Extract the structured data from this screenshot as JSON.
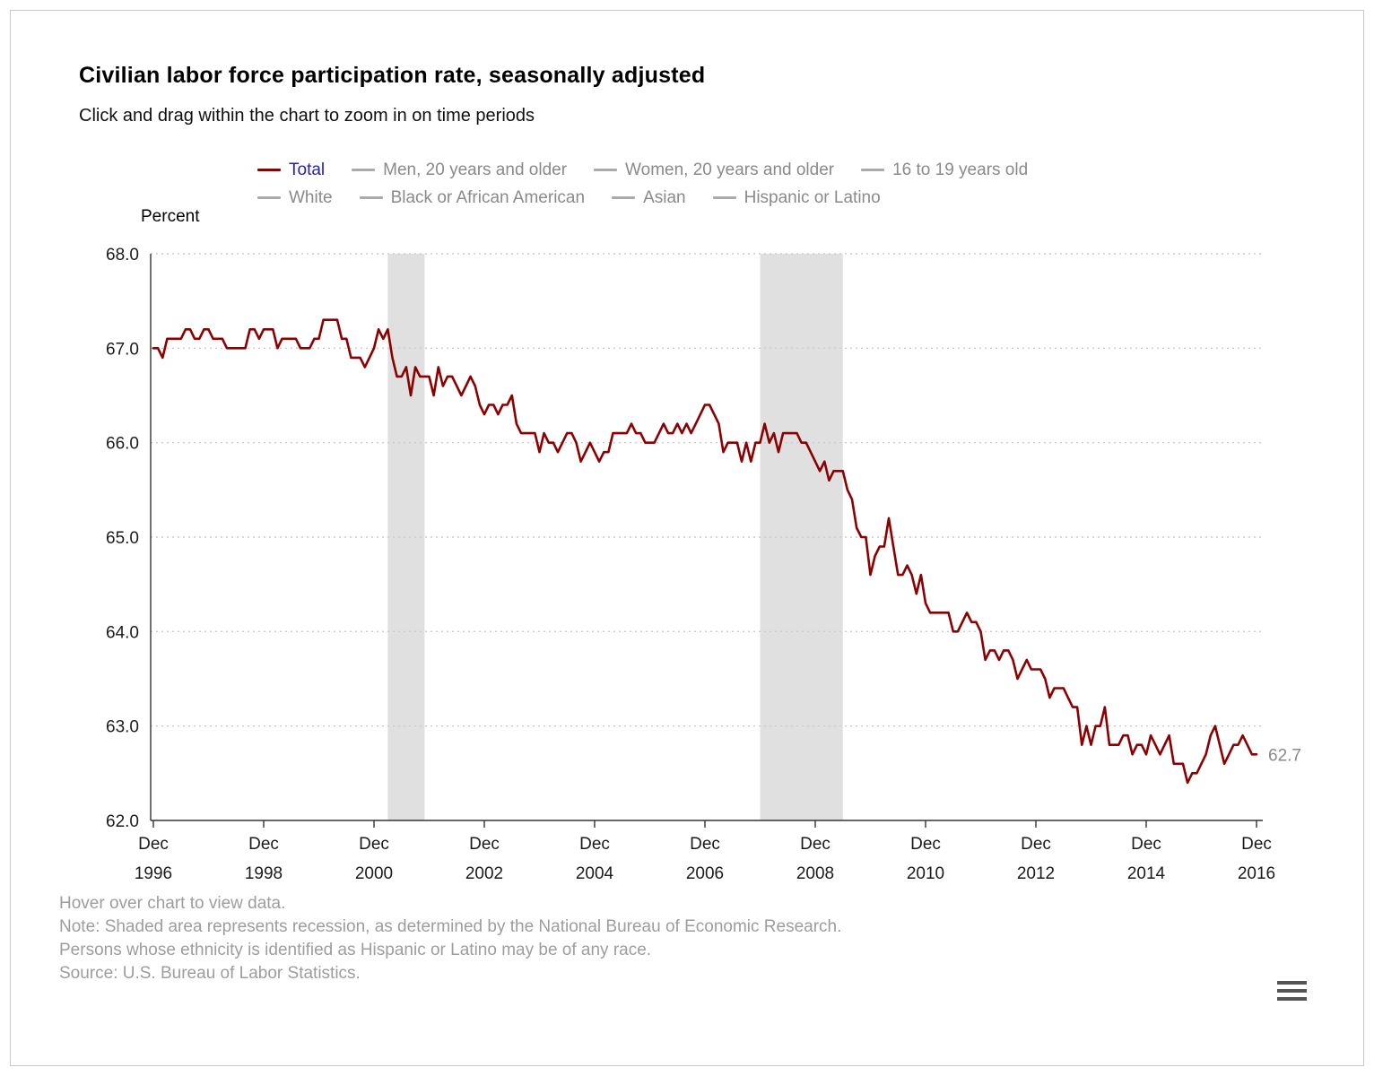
{
  "page": {
    "title": "Civilian labor force participation rate, seasonally adjusted",
    "subtitle": "Click and drag within the chart to zoom in on time periods"
  },
  "legend": {
    "rows": [
      [
        {
          "label": "Total",
          "dash_color": "#8b0000",
          "label_color": "#2424aa",
          "active": true
        },
        {
          "label": "Men, 20 years and older",
          "dash_color": "#aaaaaa",
          "label_color": "#8a8a8a",
          "active": false
        },
        {
          "label": "Women, 20 years and older",
          "dash_color": "#aaaaaa",
          "label_color": "#8a8a8a",
          "active": false
        },
        {
          "label": "16 to 19 years old",
          "dash_color": "#aaaaaa",
          "label_color": "#8a8a8a",
          "active": false
        }
      ],
      [
        {
          "label": "White",
          "dash_color": "#aaaaaa",
          "label_color": "#8a8a8a",
          "active": false
        },
        {
          "label": "Black or African American",
          "dash_color": "#aaaaaa",
          "label_color": "#8a8a8a",
          "active": false
        },
        {
          "label": "Asian",
          "dash_color": "#aaaaaa",
          "label_color": "#8a8a8a",
          "active": false
        },
        {
          "label": "Hispanic or Latino",
          "dash_color": "#aaaaaa",
          "label_color": "#8a8a8a",
          "active": false
        }
      ]
    ]
  },
  "footer": {
    "lines": [
      "Hover over chart to view data.",
      "Note: Shaded area represents recession, as determined by the National Bureau of Economic Research.",
      "Persons whose ethnicity is identified as Hispanic or Latino may be of any race.",
      "Source: U.S. Bureau of Labor Statistics."
    ]
  },
  "chart_data": {
    "type": "line",
    "title": "Civilian labor force participation rate, seasonally adjusted",
    "ylabel": "Percent",
    "ylim": [
      62.0,
      68.0
    ],
    "yticks": [
      "62.0",
      "63.0",
      "64.0",
      "65.0",
      "66.0",
      "67.0",
      "68.0"
    ],
    "grid": "dotted-horizontal",
    "legend_position": "top",
    "x_unit": "month",
    "x_start": "Dec 1996",
    "x_end": "Dec 2016",
    "xticks": [
      {
        "index": 0,
        "line1": "Dec",
        "line2": "1996"
      },
      {
        "index": 24,
        "line1": "Dec",
        "line2": "1998"
      },
      {
        "index": 48,
        "line1": "Dec",
        "line2": "2000"
      },
      {
        "index": 72,
        "line1": "Dec",
        "line2": "2002"
      },
      {
        "index": 96,
        "line1": "Dec",
        "line2": "2004"
      },
      {
        "index": 120,
        "line1": "Dec",
        "line2": "2006"
      },
      {
        "index": 144,
        "line1": "Dec",
        "line2": "2008"
      },
      {
        "index": 168,
        "line1": "Dec",
        "line2": "2010"
      },
      {
        "index": 192,
        "line1": "Dec",
        "line2": "2012"
      },
      {
        "index": 216,
        "line1": "Dec",
        "line2": "2014"
      },
      {
        "index": 240,
        "line1": "Dec",
        "line2": "2016"
      }
    ],
    "recession_color": "#e0e0e0",
    "recessions": [
      {
        "label": "2001 recession",
        "start_index": 51,
        "end_index": 59
      },
      {
        "label": "2007-2009 recession",
        "start_index": 132,
        "end_index": 150
      }
    ],
    "inactive_series": [
      "Men, 20 years and older",
      "Women, 20 years and older",
      "16 to 19 years old",
      "White",
      "Black or African American",
      "Asian",
      "Hispanic or Latino"
    ],
    "series": [
      {
        "name": "Total",
        "color": "#8b0000",
        "values": [
          67.0,
          67.0,
          66.9,
          67.1,
          67.1,
          67.1,
          67.1,
          67.2,
          67.2,
          67.1,
          67.1,
          67.2,
          67.2,
          67.1,
          67.1,
          67.1,
          67.0,
          67.0,
          67.0,
          67.0,
          67.0,
          67.2,
          67.2,
          67.1,
          67.2,
          67.2,
          67.2,
          67.0,
          67.1,
          67.1,
          67.1,
          67.1,
          67.0,
          67.0,
          67.0,
          67.1,
          67.1,
          67.3,
          67.3,
          67.3,
          67.3,
          67.1,
          67.1,
          66.9,
          66.9,
          66.9,
          66.8,
          66.9,
          67.0,
          67.2,
          67.1,
          67.2,
          66.9,
          66.7,
          66.7,
          66.8,
          66.5,
          66.8,
          66.7,
          66.7,
          66.7,
          66.5,
          66.8,
          66.6,
          66.7,
          66.7,
          66.6,
          66.5,
          66.6,
          66.7,
          66.6,
          66.4,
          66.3,
          66.4,
          66.4,
          66.3,
          66.4,
          66.4,
          66.5,
          66.2,
          66.1,
          66.1,
          66.1,
          66.1,
          65.9,
          66.1,
          66.0,
          66.0,
          65.9,
          66.0,
          66.1,
          66.1,
          66.0,
          65.8,
          65.9,
          66.0,
          65.9,
          65.8,
          65.9,
          65.9,
          66.1,
          66.1,
          66.1,
          66.1,
          66.2,
          66.1,
          66.1,
          66.0,
          66.0,
          66.0,
          66.1,
          66.2,
          66.1,
          66.1,
          66.2,
          66.1,
          66.2,
          66.1,
          66.2,
          66.3,
          66.4,
          66.4,
          66.3,
          66.2,
          65.9,
          66.0,
          66.0,
          66.0,
          65.8,
          66.0,
          65.8,
          66.0,
          66.0,
          66.2,
          66.0,
          66.1,
          65.9,
          66.1,
          66.1,
          66.1,
          66.1,
          66.0,
          66.0,
          65.9,
          65.8,
          65.7,
          65.8,
          65.6,
          65.7,
          65.7,
          65.7,
          65.5,
          65.4,
          65.1,
          65.0,
          65.0,
          64.6,
          64.8,
          64.9,
          64.9,
          65.2,
          64.9,
          64.6,
          64.6,
          64.7,
          64.6,
          64.4,
          64.6,
          64.3,
          64.2,
          64.2,
          64.2,
          64.2,
          64.2,
          64.0,
          64.0,
          64.1,
          64.2,
          64.1,
          64.1,
          64.0,
          63.7,
          63.8,
          63.8,
          63.7,
          63.8,
          63.8,
          63.7,
          63.5,
          63.6,
          63.7,
          63.6,
          63.6,
          63.6,
          63.5,
          63.3,
          63.4,
          63.4,
          63.4,
          63.3,
          63.2,
          63.2,
          62.8,
          63.0,
          62.8,
          63.0,
          63.0,
          63.2,
          62.8,
          62.8,
          62.8,
          62.9,
          62.9,
          62.7,
          62.8,
          62.8,
          62.7,
          62.9,
          62.8,
          62.7,
          62.8,
          62.9,
          62.6,
          62.6,
          62.6,
          62.4,
          62.5,
          62.5,
          62.6,
          62.7,
          62.9,
          63.0,
          62.8,
          62.6,
          62.7,
          62.8,
          62.8,
          62.9,
          62.8,
          62.7,
          62.7
        ]
      }
    ],
    "last_value_label": "62.7"
  }
}
